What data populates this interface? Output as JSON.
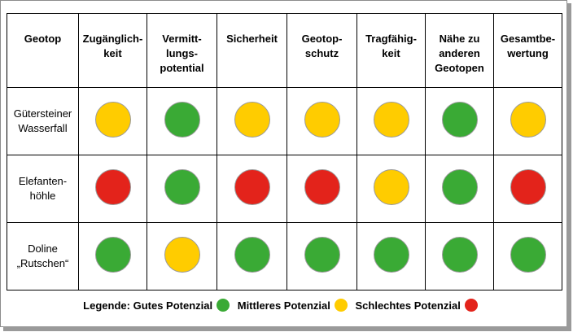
{
  "colors": {
    "gut": "#3aaa35",
    "mittel": "#ffcc00",
    "schlecht": "#e3231b"
  },
  "table": {
    "headers": [
      [
        "Geotop"
      ],
      [
        "Zugänglich-",
        "keit"
      ],
      [
        "Vermitt-",
        "lungs-",
        "potential"
      ],
      [
        "Sicherheit"
      ],
      [
        "Geotop-",
        "schutz"
      ],
      [
        "Tragfähig-",
        "keit"
      ],
      [
        "Nähe zu",
        "anderen",
        "Geotopen"
      ],
      [
        "Gesamtbe-",
        "wertung"
      ]
    ],
    "rows": [
      {
        "name": [
          "Gütersteiner",
          "Wasserfall"
        ],
        "ratings": [
          "mittel",
          "gut",
          "mittel",
          "mittel",
          "mittel",
          "gut",
          "mittel"
        ]
      },
      {
        "name": [
          "Elefanten-",
          "höhle"
        ],
        "ratings": [
          "schlecht",
          "gut",
          "schlecht",
          "schlecht",
          "mittel",
          "gut",
          "schlecht"
        ]
      },
      {
        "name": [
          "Doline",
          "„Rutschen“"
        ],
        "ratings": [
          "gut",
          "mittel",
          "gut",
          "gut",
          "gut",
          "gut",
          "gut"
        ]
      }
    ]
  },
  "legend": {
    "title": "Legende:",
    "items": [
      {
        "label": "Gutes Potenzial",
        "rating": "gut"
      },
      {
        "label": "Mittleres Potenzial",
        "rating": "mittel"
      },
      {
        "label": "Schlechtes Potenzial",
        "rating": "schlecht"
      }
    ]
  }
}
